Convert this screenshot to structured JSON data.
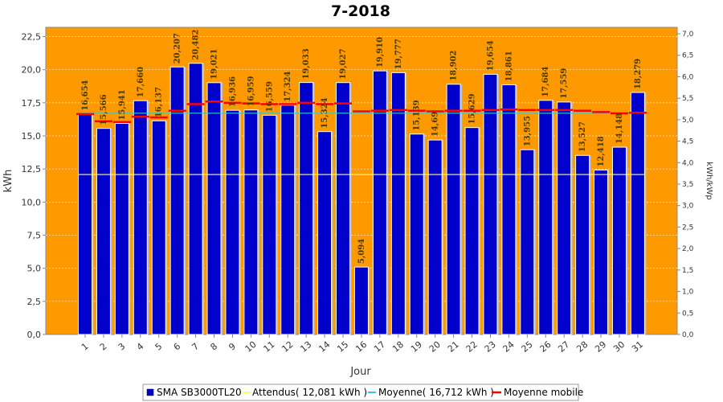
{
  "chart_data": {
    "type": "bar",
    "title": "7-2018",
    "xlabel": "Jour",
    "ylabel": "kWh",
    "ylabel_right": "kWh/kWp",
    "ylim": [
      0,
      23.2
    ],
    "ylim_right": [
      0,
      7.15
    ],
    "yticks": [
      "0,0",
      "2,5",
      "5,0",
      "7,5",
      "10,0",
      "12,5",
      "15,0",
      "17,5",
      "20,0",
      "22,5"
    ],
    "yticks_right": [
      "0,0",
      "0,5",
      "1,0",
      "1,5",
      "2,0",
      "2,5",
      "3,0",
      "3,5",
      "4,0",
      "4,5",
      "5,0",
      "5,5",
      "6,0",
      "6,5",
      "7,0"
    ],
    "categories": [
      "1",
      "2",
      "3",
      "4",
      "5",
      "6",
      "7",
      "8",
      "9",
      "10",
      "11",
      "12",
      "13",
      "14",
      "15",
      "16",
      "17",
      "18",
      "19",
      "20",
      "21",
      "22",
      "23",
      "24",
      "25",
      "26",
      "27",
      "28",
      "29",
      "30",
      "31"
    ],
    "series": [
      {
        "name": "SMA SB3000TL20",
        "color": "#0000cc",
        "values": [
          16.654,
          15.566,
          15.941,
          17.66,
          16.137,
          20.207,
          20.482,
          19.021,
          16.936,
          16.959,
          16.559,
          17.324,
          19.033,
          15.324,
          19.027,
          5.094,
          19.91,
          19.777,
          15.139,
          14.69,
          18.902,
          15.629,
          19.654,
          18.861,
          13.955,
          17.684,
          17.559,
          13.527,
          12.418,
          14.148,
          18.279
        ],
        "labels": [
          "16,654",
          "15,566",
          "15,941",
          "17,660",
          "16,137",
          "20,207",
          "20,482",
          "19,021",
          "16,936",
          "16,959",
          "16,559",
          "17,324",
          "19,033",
          "15,324",
          "19,027",
          "5,094",
          "19,910",
          "19,777",
          "15,139",
          "14,69",
          "18,902",
          "15,629",
          "19,654",
          "18,861",
          "13,955",
          "17,684",
          "17,559",
          "13,527",
          "12,418",
          "14,148",
          "18,279"
        ]
      },
      {
        "name": "Attendus( 12,081 kWh )",
        "color": "#ffff66",
        "value": 12.081
      },
      {
        "name": "Moyenne( 16,712 kWh )",
        "color": "#33cccc",
        "value": 16.712
      },
      {
        "name": "Moyenne mobile",
        "color": "#ff0000",
        "values": [
          16.65,
          16.1,
          16.05,
          16.45,
          16.4,
          16.9,
          17.4,
          17.6,
          17.5,
          17.45,
          17.4,
          17.4,
          17.5,
          17.4,
          17.45,
          16.85,
          16.9,
          16.95,
          16.9,
          16.85,
          16.9,
          16.9,
          16.95,
          17.0,
          16.95,
          16.95,
          16.95,
          16.9,
          16.8,
          16.7,
          16.75
        ]
      }
    ],
    "grid": true,
    "legend_position": "bottom"
  }
}
